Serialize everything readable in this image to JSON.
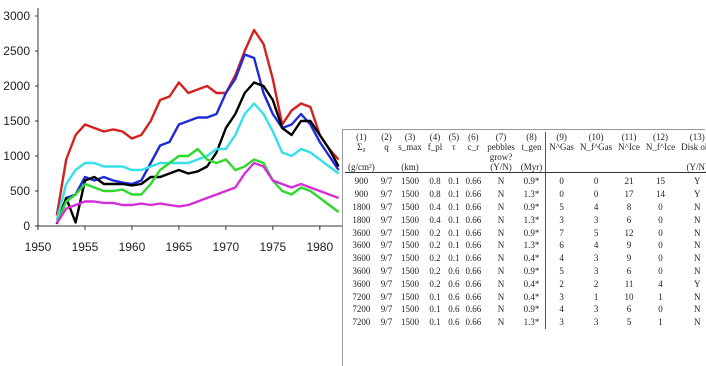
{
  "chart_data": {
    "type": "line",
    "x": [
      1952,
      1953,
      1954,
      1955,
      1956,
      1957,
      1958,
      1959,
      1960,
      1961,
      1962,
      1963,
      1964,
      1965,
      1966,
      1967,
      1968,
      1969,
      1970,
      1971,
      1972,
      1973,
      1974,
      1975,
      1976,
      1977,
      1978,
      1979,
      1980,
      1981,
      1982
    ],
    "xticks": [
      1950,
      1955,
      1960,
      1965,
      1970,
      1975,
      1980
    ],
    "yticks": [
      0,
      500,
      1000,
      1500,
      2000,
      2500,
      3000
    ],
    "xlim": [
      1950,
      1983
    ],
    "ylim": [
      0,
      3000
    ],
    "series": [
      {
        "color": "#d42020",
        "values": [
          150,
          950,
          1300,
          1450,
          1400,
          1350,
          1380,
          1350,
          1250,
          1300,
          1500,
          1800,
          1850,
          2050,
          1900,
          1950,
          2000,
          1900,
          1900,
          2150,
          2500,
          2800,
          2600,
          2100,
          1450,
          1650,
          1750,
          1700,
          1300,
          1100,
          950
        ]
      },
      {
        "color": "#1f2bd6",
        "values": [
          30,
          400,
          450,
          700,
          650,
          700,
          650,
          620,
          600,
          650,
          900,
          1150,
          1200,
          1450,
          1500,
          1550,
          1550,
          1600,
          1900,
          2100,
          2450,
          2400,
          1900,
          1600,
          1400,
          1450,
          1600,
          1450,
          1200,
          1000,
          800
        ]
      },
      {
        "color": "#000000",
        "values": [
          30,
          400,
          50,
          650,
          700,
          600,
          600,
          600,
          580,
          600,
          700,
          700,
          750,
          800,
          750,
          780,
          850,
          1050,
          1400,
          1600,
          1900,
          2050,
          2000,
          1800,
          1400,
          1300,
          1500,
          1500,
          1300,
          1100,
          850
        ]
      },
      {
        "color": "#36e0ea",
        "values": [
          80,
          600,
          800,
          900,
          900,
          850,
          850,
          850,
          800,
          800,
          850,
          900,
          900,
          900,
          900,
          950,
          1000,
          1100,
          1100,
          1300,
          1600,
          1750,
          1600,
          1350,
          1050,
          1000,
          1100,
          1050,
          950,
          850,
          750
        ]
      },
      {
        "color": "#2ed82e",
        "values": [
          40,
          350,
          450,
          600,
          550,
          500,
          500,
          520,
          450,
          450,
          600,
          800,
          900,
          1000,
          1000,
          1100,
          950,
          900,
          950,
          800,
          850,
          950,
          900,
          650,
          500,
          450,
          550,
          500,
          400,
          300,
          200
        ]
      },
      {
        "color": "#d62ed6",
        "values": [
          40,
          250,
          300,
          350,
          350,
          330,
          330,
          300,
          300,
          320,
          300,
          320,
          300,
          280,
          300,
          350,
          400,
          450,
          500,
          550,
          750,
          900,
          850,
          650,
          600,
          550,
          600,
          550,
          500,
          450,
          400
        ]
      }
    ]
  },
  "table": {
    "header_num": [
      "(1)",
      "(2)",
      "(3)",
      "(4)",
      "(5)",
      "(6)",
      "(7)",
      "(8)",
      "(9)",
      "(10)",
      "(11)",
      "(12)",
      "(13)"
    ],
    "header_sym": [
      "Σ₀",
      "q",
      "s_max",
      "f_pl",
      "τ",
      "c_r",
      "pebbles",
      "t_gen",
      "N^Gas",
      "N_f^Gas",
      "N^Ice",
      "N_f^Ice",
      "Disk ok?"
    ],
    "header_extra": "grow?",
    "units": [
      "(g/cm²)",
      "",
      "(km)",
      "",
      "",
      "",
      "(Y/N)",
      "(Myr)",
      "",
      "",
      "",
      "",
      "(Y/N)"
    ],
    "rows": [
      [
        "900",
        "9/7",
        "1500",
        "0.8",
        "0.1",
        "0.66",
        "N",
        "0.9*",
        "0",
        "0",
        "21",
        "15",
        "Y"
      ],
      [
        "900",
        "9/7",
        "1500",
        "0.8",
        "0.1",
        "0.66",
        "N",
        "1.3*",
        "0",
        "0",
        "17",
        "14",
        "Y"
      ],
      [
        "1800",
        "9/7",
        "1500",
        "0.4",
        "0.1",
        "0.66",
        "N",
        "0.9*",
        "5",
        "4",
        "8",
        "0",
        "N"
      ],
      [
        "1800",
        "9/7",
        "1500",
        "0.4",
        "0.1",
        "0.66",
        "N",
        "1.3*",
        "3",
        "3",
        "6",
        "0",
        "N"
      ],
      [
        "3600",
        "9/7",
        "1500",
        "0.2",
        "0.1",
        "0.66",
        "N",
        "0.9*",
        "7",
        "5",
        "12",
        "0",
        "N"
      ],
      [
        "3600",
        "9/7",
        "1500",
        "0.2",
        "0.1",
        "0.66",
        "N",
        "1.3*",
        "6",
        "4",
        "9",
        "0",
        "N"
      ],
      [
        "3600",
        "9/7",
        "1500",
        "0.2",
        "0.1",
        "0.66",
        "N",
        "0.4*",
        "4",
        "3",
        "9",
        "0",
        "N"
      ],
      [
        "3600",
        "9/7",
        "1500",
        "0.2",
        "0.6",
        "0.66",
        "N",
        "0.9*",
        "5",
        "3",
        "6",
        "0",
        "N"
      ],
      [
        "3600",
        "9/7",
        "1500",
        "0.2",
        "0.6",
        "0.66",
        "N",
        "0.4*",
        "2",
        "2",
        "11",
        "4",
        "Y"
      ],
      [
        "7200",
        "9/7",
        "1500",
        "0.1",
        "0.6",
        "0.66",
        "N",
        "0.4*",
        "3",
        "1",
        "10",
        "1",
        "N"
      ],
      [
        "7200",
        "9/7",
        "1500",
        "0.1",
        "0.6",
        "0.66",
        "N",
        "0.9*",
        "4",
        "3",
        "6",
        "0",
        "N"
      ],
      [
        "7200",
        "9/7",
        "1500",
        "0.1",
        "0.6",
        "0.66",
        "N",
        "1.3*",
        "3",
        "3",
        "5",
        "1",
        "N"
      ]
    ]
  }
}
